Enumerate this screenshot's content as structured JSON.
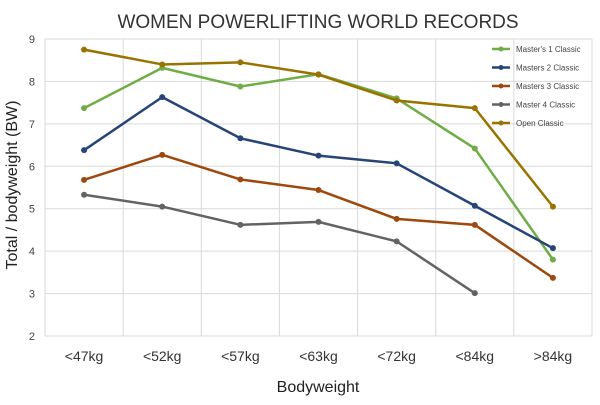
{
  "chart_data": {
    "type": "line",
    "title": "WOMEN POWERLIFTING WORLD RECORDS",
    "xlabel": "Bodyweight",
    "ylabel": "Total / bodyweight (BW)",
    "categories": [
      "<47kg",
      "<52kg",
      "<57kg",
      "<63kg",
      "<72kg",
      "<84kg",
      ">84kg"
    ],
    "ylim": [
      2,
      9
    ],
    "yticks": [
      "2",
      "3",
      "4",
      "5",
      "6",
      "7",
      "8",
      "9"
    ],
    "grid": true,
    "legend_position": "top-right",
    "series": [
      {
        "name": "Master's 1 Classic",
        "color": "#70ad47",
        "values": [
          7.37,
          8.32,
          7.88,
          8.17,
          7.6,
          6.42,
          3.8
        ]
      },
      {
        "name": "Masters 2 Classic",
        "color": "#264478",
        "values": [
          6.38,
          7.63,
          6.66,
          6.25,
          6.07,
          5.07,
          4.07
        ]
      },
      {
        "name": "Masters 3 Classic",
        "color": "#9e480e",
        "values": [
          5.68,
          6.27,
          5.69,
          5.44,
          4.76,
          4.62,
          3.37
        ]
      },
      {
        "name": "Master 4 Classic",
        "color": "#636363",
        "values": [
          5.33,
          5.05,
          4.62,
          4.69,
          4.23,
          3.01,
          null
        ]
      },
      {
        "name": "Open Classic",
        "color": "#997300",
        "values": [
          8.75,
          8.4,
          8.45,
          8.16,
          7.55,
          7.37,
          5.05
        ]
      }
    ]
  }
}
